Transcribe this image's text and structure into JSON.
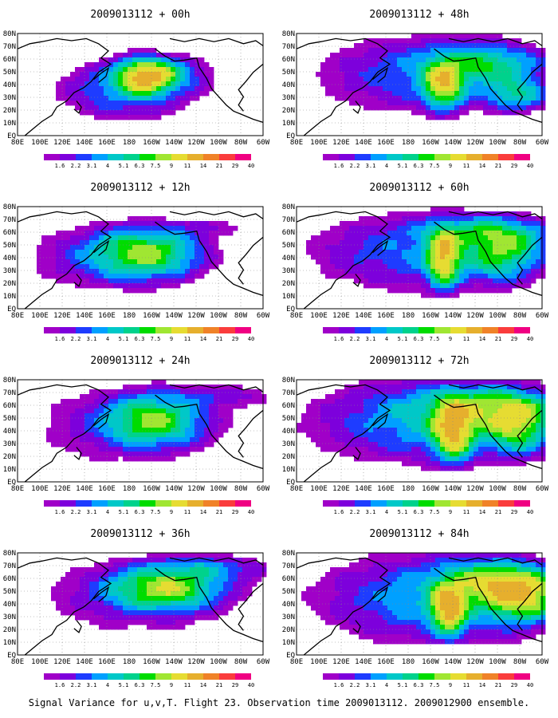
{
  "caption": "Signal Variance for u,v,T. Flight 23. Observation time 2009013112. 2009012900 ensemble.",
  "lat_labels": [
    "80N",
    "70N",
    "60N",
    "50N",
    "40N",
    "30N",
    "20N",
    "10N",
    "EQ"
  ],
  "lon_labels": [
    "80E",
    "100E",
    "120E",
    "140E",
    "160E",
    "180",
    "160W",
    "140W",
    "120W",
    "100W",
    "80W",
    "60W"
  ],
  "colorbar": {
    "labels": [
      "1.6",
      "2.2",
      "3.1",
      "4",
      "5.1",
      "6.3",
      "7.5",
      "9",
      "11",
      "14",
      "21",
      "29",
      "40"
    ],
    "colors": [
      "#a000c8",
      "#7d00dc",
      "#1e3cff",
      "#00a0ff",
      "#00c8c8",
      "#00d28c",
      "#00dc00",
      "#a0e632",
      "#e6dc32",
      "#e6af2d",
      "#f08228",
      "#fa3c3c",
      "#f00082"
    ]
  },
  "panels": [
    {
      "title": "2009013112 + 00h",
      "lead_hours": 0
    },
    {
      "title": "2009013112 + 48h",
      "lead_hours": 48
    },
    {
      "title": "2009013112 + 12h",
      "lead_hours": 12
    },
    {
      "title": "2009013112 + 60h",
      "lead_hours": 60
    },
    {
      "title": "2009013112 + 24h",
      "lead_hours": 24
    },
    {
      "title": "2009013112 + 72h",
      "lead_hours": 72
    },
    {
      "title": "2009013112 + 36h",
      "lead_hours": 36
    },
    {
      "title": "2009013112 + 84h",
      "lead_hours": 84
    }
  ]
}
